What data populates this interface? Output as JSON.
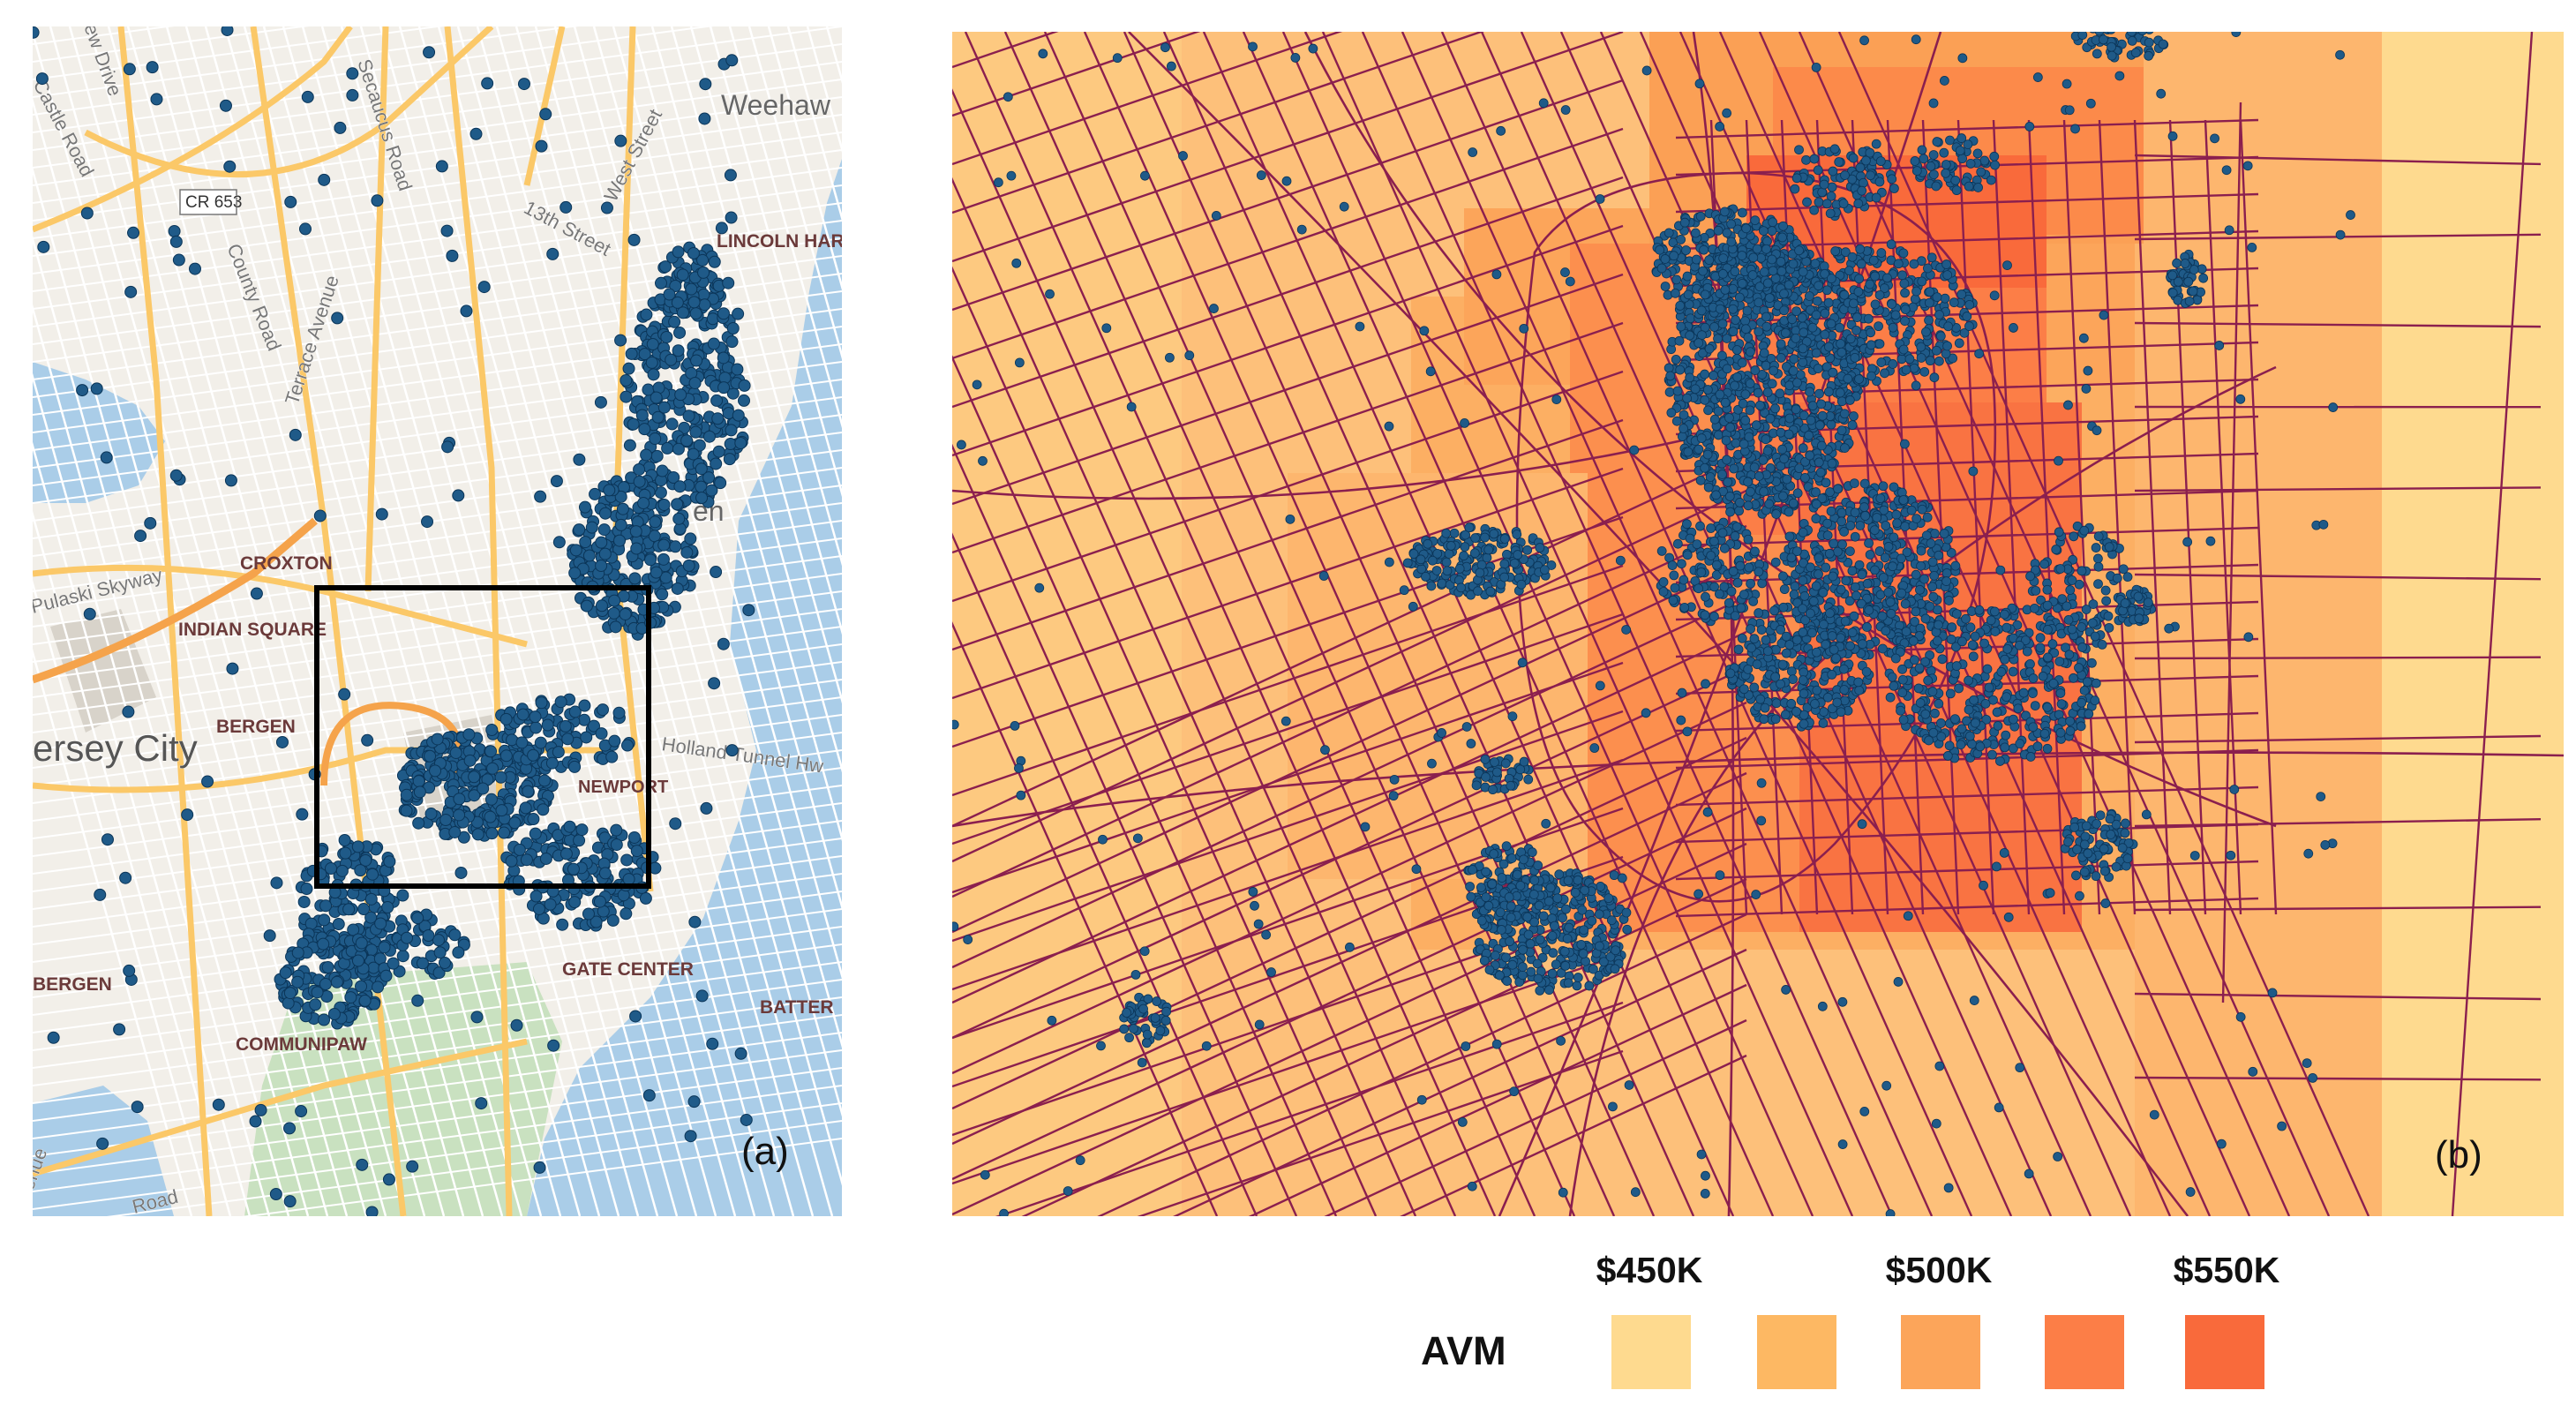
{
  "panel_a": {
    "letter": "(a)",
    "labels": [
      {
        "id": "weehawken",
        "text": "Weehaw"
      },
      {
        "id": "lincoln-harbor",
        "text": "LINCOLN HAR"
      },
      {
        "id": "croxton",
        "text": "CROXTON"
      },
      {
        "id": "indian-square",
        "text": "INDIAN SQUARE"
      },
      {
        "id": "bergen-1",
        "text": "BERGEN"
      },
      {
        "id": "bergen-2",
        "text": "BERGEN"
      },
      {
        "id": "jersey-city",
        "text": "ersey City"
      },
      {
        "id": "newport",
        "text": "NEWPORT"
      },
      {
        "id": "harborside",
        "text": "GATE CENTER"
      },
      {
        "id": "battery",
        "text": "BATTER"
      },
      {
        "id": "communipaw",
        "text": "COMMUNIPAW"
      },
      {
        "id": "holland-tunnel",
        "text": "Holland Tunnel Hw"
      },
      {
        "id": "pulaski-skyway",
        "text": "Pulaski Skyway"
      },
      {
        "id": "cr653",
        "text": "CR 653"
      },
      {
        "id": "county-road",
        "text": "County Road"
      },
      {
        "id": "terrace-avenue",
        "text": "Terrace Avenue"
      },
      {
        "id": "west-street",
        "text": "West Street"
      },
      {
        "id": "13th-street",
        "text": "13th Street"
      },
      {
        "id": "secaucus-road",
        "text": "Secaucus Road"
      },
      {
        "id": "castle-road",
        "text": "Castle Road"
      },
      {
        "id": "new-drive",
        "text": "ew Drive"
      },
      {
        "id": "road-bottom",
        "text": "Road"
      },
      {
        "id": "enue",
        "text": "enue"
      },
      {
        "id": "hoboken",
        "text": "en"
      }
    ]
  },
  "panel_b": {
    "letter": "(b)"
  },
  "legend": {
    "title": "AVM",
    "price_labels": [
      "$450K",
      "$500K",
      "$550K"
    ],
    "swatch_colors": [
      "#FEDA8F",
      "#FDB863",
      "#FCA55A",
      "#FC7E47",
      "#F96A3B"
    ]
  },
  "colors": {
    "map_land": "#F2EFE9",
    "map_water": "#AACDE8",
    "map_park": "#C9E1C0",
    "map_road_major": "#FBC868",
    "map_road_minor": "#FFFFFF",
    "point": "#1F5A88",
    "point_edge": "#0B3558",
    "street_line": "#8B1F4E",
    "avm_base": "#FDC07A"
  }
}
